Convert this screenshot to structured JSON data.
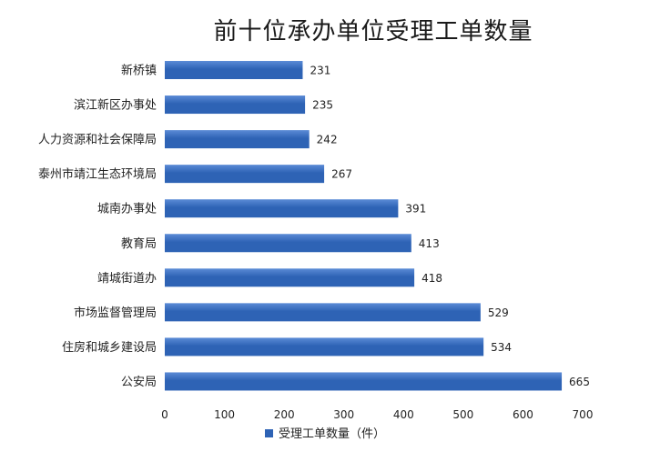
{
  "colors": {
    "bar": "#2E63B5",
    "bar_highlight": "#5B8BD6",
    "text": "#222222"
  },
  "chart_data": {
    "type": "bar",
    "orientation": "horizontal",
    "title": "前十位承办单位受理工单数量",
    "categories": [
      "新桥镇",
      "滨江新区办事处",
      "人力资源和社会保障局",
      "泰州市靖江生态环境局",
      "城南办事处",
      "教育局",
      "靖城街道办",
      "市场监督管理局",
      "住房和城乡建设局",
      "公安局"
    ],
    "series": [
      {
        "name": "受理工单数量（件）",
        "values": [
          231,
          235,
          242,
          267,
          391,
          413,
          418,
          529,
          534,
          665
        ]
      }
    ],
    "xlim": [
      0,
      700
    ],
    "xticks": [
      "0",
      "100",
      "200",
      "300",
      "400",
      "500",
      "600",
      "700"
    ],
    "grid": false,
    "legend_position": "bottom",
    "data_labels": true
  }
}
